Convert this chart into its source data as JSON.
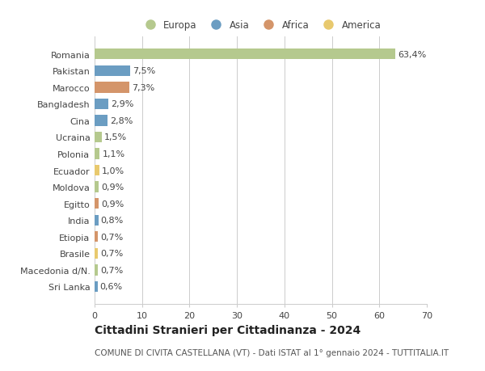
{
  "countries": [
    "Romania",
    "Pakistan",
    "Marocco",
    "Bangladesh",
    "Cina",
    "Ucraina",
    "Polonia",
    "Ecuador",
    "Moldova",
    "Egitto",
    "India",
    "Etiopia",
    "Brasile",
    "Macedonia d/N.",
    "Sri Lanka"
  ],
  "values": [
    63.4,
    7.5,
    7.3,
    2.9,
    2.8,
    1.5,
    1.1,
    1.0,
    0.9,
    0.9,
    0.8,
    0.7,
    0.7,
    0.7,
    0.6
  ],
  "labels": [
    "63,4%",
    "7,5%",
    "7,3%",
    "2,9%",
    "2,8%",
    "1,5%",
    "1,1%",
    "1,0%",
    "0,9%",
    "0,9%",
    "0,8%",
    "0,7%",
    "0,7%",
    "0,7%",
    "0,6%"
  ],
  "colors": [
    "#b5c98e",
    "#6b9dc2",
    "#d4956a",
    "#6b9dc2",
    "#6b9dc2",
    "#b5c98e",
    "#b5c98e",
    "#e8c96e",
    "#b5c98e",
    "#d4956a",
    "#6b9dc2",
    "#d4956a",
    "#e8c96e",
    "#b5c98e",
    "#6b9dc2"
  ],
  "legend_labels": [
    "Europa",
    "Asia",
    "Africa",
    "America"
  ],
  "legend_colors": [
    "#b5c98e",
    "#6b9dc2",
    "#d4956a",
    "#e8c96e"
  ],
  "title": "Cittadini Stranieri per Cittadinanza - 2024",
  "subtitle": "COMUNE DI CIVITA CASTELLANA (VT) - Dati ISTAT al 1° gennaio 2024 - TUTTITALIA.IT",
  "xlim": [
    0,
    70
  ],
  "xticks": [
    0,
    10,
    20,
    30,
    40,
    50,
    60,
    70
  ],
  "background_color": "#ffffff",
  "grid_color": "#cccccc",
  "bar_height": 0.65,
  "title_fontsize": 10,
  "subtitle_fontsize": 7.5,
  "tick_fontsize": 8,
  "label_fontsize": 8,
  "legend_fontsize": 8.5
}
